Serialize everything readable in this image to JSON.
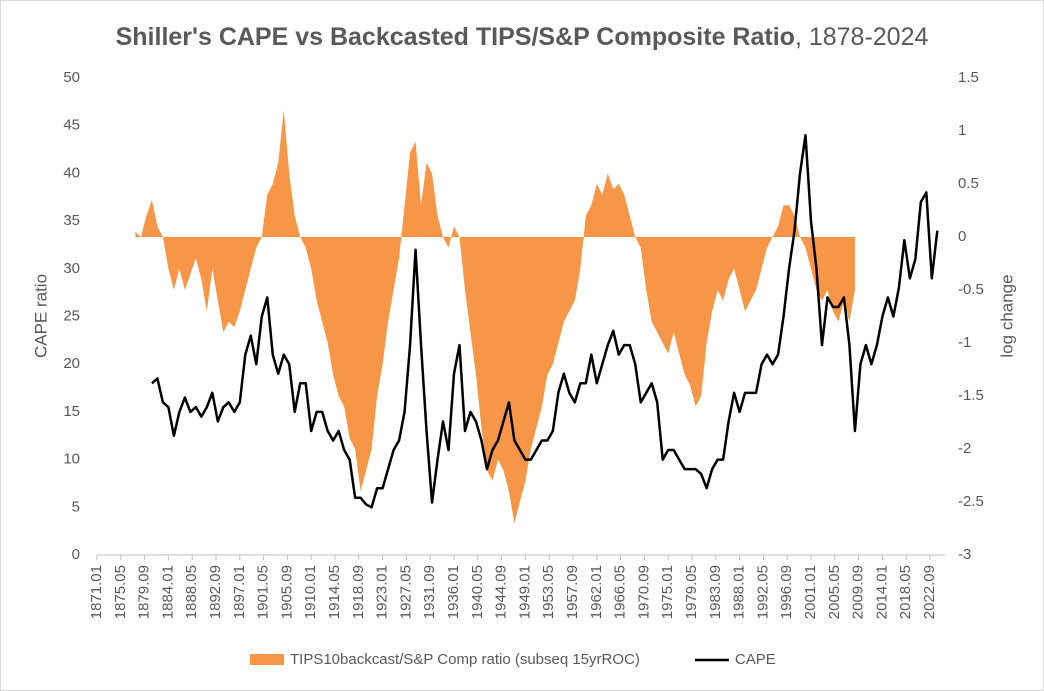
{
  "chart_data": {
    "type": "area-line",
    "title_parts": [
      "Shiller's CAPE vs Backcasted TIPS/S&P  Composite Ratio",
      ", 1878-2024"
    ],
    "ylabel": "CAPE ratio",
    "y2label": "log change",
    "xlim": [
      1871,
      2025.4
    ],
    "xticks": [
      {
        "value": 1871,
        "label": "1871.01"
      },
      {
        "value": 1875.333,
        "label": "1875.05"
      },
      {
        "value": 1879.667,
        "label": "1879.09"
      },
      {
        "value": 1884,
        "label": "1884.01"
      },
      {
        "value": 1888.333,
        "label": "1888.05"
      },
      {
        "value": 1892.667,
        "label": "1892.09"
      },
      {
        "value": 1897,
        "label": "1897.01"
      },
      {
        "value": 1901.333,
        "label": "1901.05"
      },
      {
        "value": 1905.667,
        "label": "1905.09"
      },
      {
        "value": 1910,
        "label": "1910.01"
      },
      {
        "value": 1914.333,
        "label": "1914.05"
      },
      {
        "value": 1918.667,
        "label": "1918.09"
      },
      {
        "value": 1923,
        "label": "1923.01"
      },
      {
        "value": 1927.333,
        "label": "1927.05"
      },
      {
        "value": 1931.667,
        "label": "1931.09"
      },
      {
        "value": 1936,
        "label": "1936.01"
      },
      {
        "value": 1940.333,
        "label": "1940.05"
      },
      {
        "value": 1944.667,
        "label": "1944.09"
      },
      {
        "value": 1949,
        "label": "1949.01"
      },
      {
        "value": 1953.333,
        "label": "1953.05"
      },
      {
        "value": 1957.667,
        "label": "1957.09"
      },
      {
        "value": 1962,
        "label": "1962.01"
      },
      {
        "value": 1966.333,
        "label": "1966.05"
      },
      {
        "value": 1970.667,
        "label": "1970.09"
      },
      {
        "value": 1975,
        "label": "1975.01"
      },
      {
        "value": 1979.333,
        "label": "1979.05"
      },
      {
        "value": 1983.667,
        "label": "1983.09"
      },
      {
        "value": 1988,
        "label": "1988.01"
      },
      {
        "value": 1992.333,
        "label": "1992.05"
      },
      {
        "value": 1996.667,
        "label": "1996.09"
      },
      {
        "value": 2001,
        "label": "2001.01"
      },
      {
        "value": 2005.333,
        "label": "2005.05"
      },
      {
        "value": 2009.667,
        "label": "2009.09"
      },
      {
        "value": 2014,
        "label": "2014.01"
      },
      {
        "value": 2018.333,
        "label": "2018.05"
      },
      {
        "value": 2022.667,
        "label": "2022.09"
      }
    ],
    "ylim": [
      0,
      50
    ],
    "yticks": [
      0,
      5,
      10,
      15,
      20,
      25,
      30,
      35,
      40,
      45,
      50
    ],
    "y2lim": [
      -3,
      1.5
    ],
    "y2ticks": [
      -3,
      -2.5,
      -2,
      -1.5,
      -1,
      -0.5,
      0,
      0.5,
      1,
      1.5
    ],
    "grid": false,
    "legend": "bottom",
    "series": [
      {
        "name": "TIPS10backcast/S&P Comp ratio (subseq 15yrROC)",
        "type": "area",
        "axis": "y2",
        "color": "#f79646",
        "x": [
          1878,
          1879,
          1880,
          1881,
          1882,
          1883,
          1884,
          1885,
          1886,
          1887,
          1888,
          1889,
          1890,
          1891,
          1892,
          1893,
          1894,
          1895,
          1896,
          1897,
          1898,
          1899,
          1900,
          1901,
          1902,
          1903,
          1904,
          1905,
          1906,
          1907,
          1908,
          1909,
          1910,
          1911,
          1912,
          1913,
          1914,
          1915,
          1916,
          1917,
          1918,
          1919,
          1920,
          1921,
          1922,
          1923,
          1924,
          1925,
          1926,
          1927,
          1928,
          1929,
          1930,
          1931,
          1932,
          1933,
          1934,
          1935,
          1936,
          1937,
          1938,
          1939,
          1940,
          1941,
          1942,
          1943,
          1944,
          1945,
          1946,
          1947,
          1948,
          1949,
          1950,
          1951,
          1952,
          1953,
          1954,
          1955,
          1956,
          1957,
          1958,
          1959,
          1960,
          1961,
          1962,
          1963,
          1964,
          1965,
          1966,
          1967,
          1968,
          1969,
          1970,
          1971,
          1972,
          1973,
          1974,
          1975,
          1976,
          1977,
          1978,
          1979,
          1980,
          1981,
          1982,
          1983,
          1984,
          1985,
          1986,
          1987,
          1988,
          1989,
          1990,
          1991,
          1992,
          1993,
          1994,
          1995,
          1996,
          1997,
          1998,
          1999,
          2000,
          2001,
          2002,
          2003,
          2004,
          2005,
          2006,
          2007,
          2008,
          2009
        ],
        "values": [
          0.05,
          0,
          0.2,
          0.35,
          0.1,
          0,
          -0.3,
          -0.5,
          -0.3,
          -0.5,
          -0.35,
          -0.2,
          -0.4,
          -0.7,
          -0.3,
          -0.6,
          -0.9,
          -0.8,
          -0.85,
          -0.7,
          -0.5,
          -0.3,
          -0.1,
          0,
          0.4,
          0.5,
          0.7,
          1.2,
          0.6,
          0.2,
          0,
          -0.1,
          -0.3,
          -0.6,
          -0.8,
          -1,
          -1.3,
          -1.5,
          -1.6,
          -1.9,
          -2,
          -2.4,
          -2.2,
          -2,
          -1.5,
          -1.2,
          -0.8,
          -0.5,
          -0.2,
          0.3,
          0.8,
          0.9,
          0.3,
          0.7,
          0.6,
          0.2,
          0,
          -0.1,
          0.1,
          0,
          -0.5,
          -0.9,
          -1.3,
          -1.8,
          -2.2,
          -2.3,
          -2.1,
          -2.2,
          -2.4,
          -2.7,
          -2.5,
          -2.3,
          -2,
          -1.8,
          -1.6,
          -1.3,
          -1.2,
          -1,
          -0.8,
          -0.7,
          -0.6,
          -0.3,
          0.2,
          0.3,
          0.5,
          0.4,
          0.6,
          0.45,
          0.5,
          0.4,
          0.2,
          0,
          -0.1,
          -0.5,
          -0.8,
          -0.9,
          -1,
          -1.1,
          -0.9,
          -1.1,
          -1.3,
          -1.4,
          -1.6,
          -1.5,
          -1,
          -0.7,
          -0.5,
          -0.6,
          -0.4,
          -0.3,
          -0.5,
          -0.7,
          -0.6,
          -0.5,
          -0.3,
          -0.1,
          0,
          0.1,
          0.3,
          0.3,
          0.2,
          0,
          -0.1,
          -0.3,
          -0.5,
          -0.6,
          -0.5,
          -0.7,
          -0.8,
          -0.6,
          -0.8,
          -0.5
        ]
      },
      {
        "name": "CAPE",
        "type": "line",
        "axis": "y",
        "color": "#000000",
        "x": [
          1881,
          1882,
          1883,
          1884,
          1885,
          1886,
          1887,
          1888,
          1889,
          1890,
          1891,
          1892,
          1893,
          1894,
          1895,
          1896,
          1897,
          1898,
          1899,
          1900,
          1901,
          1902,
          1903,
          1904,
          1905,
          1906,
          1907,
          1908,
          1909,
          1910,
          1911,
          1912,
          1913,
          1914,
          1915,
          1916,
          1917,
          1918,
          1919,
          1920,
          1921,
          1922,
          1923,
          1924,
          1925,
          1926,
          1927,
          1928,
          1929,
          1930,
          1931,
          1932,
          1933,
          1934,
          1935,
          1936,
          1937,
          1938,
          1939,
          1940,
          1941,
          1942,
          1943,
          1944,
          1945,
          1946,
          1947,
          1948,
          1949,
          1950,
          1951,
          1952,
          1953,
          1954,
          1955,
          1956,
          1957,
          1958,
          1959,
          1960,
          1961,
          1962,
          1963,
          1964,
          1965,
          1966,
          1967,
          1968,
          1969,
          1970,
          1971,
          1972,
          1973,
          1974,
          1975,
          1976,
          1977,
          1978,
          1979,
          1980,
          1981,
          1982,
          1983,
          1984,
          1985,
          1986,
          1987,
          1988,
          1989,
          1990,
          1991,
          1992,
          1993,
          1994,
          1995,
          1996,
          1997,
          1998,
          1999,
          2000,
          2001,
          2002,
          2003,
          2004,
          2005,
          2006,
          2007,
          2008,
          2009,
          2010,
          2011,
          2012,
          2013,
          2014,
          2015,
          2016,
          2017,
          2018,
          2019,
          2020,
          2021,
          2022,
          2023,
          2024
        ],
        "values": [
          18,
          18.5,
          16,
          15.5,
          12.5,
          15,
          16.5,
          15,
          15.5,
          14.5,
          15.5,
          17,
          14,
          15.5,
          16,
          15,
          16,
          21,
          23,
          20,
          25,
          27,
          21,
          19,
          21,
          20,
          15,
          18,
          18,
          13,
          15,
          15,
          13,
          12,
          13,
          11,
          10,
          6,
          6,
          5.3,
          5,
          7,
          7,
          9,
          11,
          12,
          15,
          22,
          32,
          22,
          13,
          5.5,
          10,
          14,
          11,
          19,
          22,
          13,
          15,
          14,
          12,
          9,
          11,
          12,
          14,
          16,
          12,
          11,
          10,
          10,
          11,
          12,
          12,
          13,
          17,
          19,
          17,
          16,
          18,
          18,
          21,
          18,
          20,
          22,
          23.5,
          21,
          22,
          22,
          20,
          16,
          17,
          18,
          16,
          10,
          11,
          11,
          10,
          9,
          9,
          9,
          8.5,
          7,
          9,
          10,
          10,
          14,
          17,
          15,
          17,
          17,
          17,
          20,
          21,
          20,
          21,
          25,
          30,
          34,
          40,
          44,
          35,
          30,
          22,
          27,
          26,
          26,
          27,
          22,
          13,
          20,
          22,
          20,
          22,
          25,
          27,
          25,
          28,
          33,
          29,
          31,
          37,
          38,
          29,
          34
        ]
      }
    ]
  }
}
